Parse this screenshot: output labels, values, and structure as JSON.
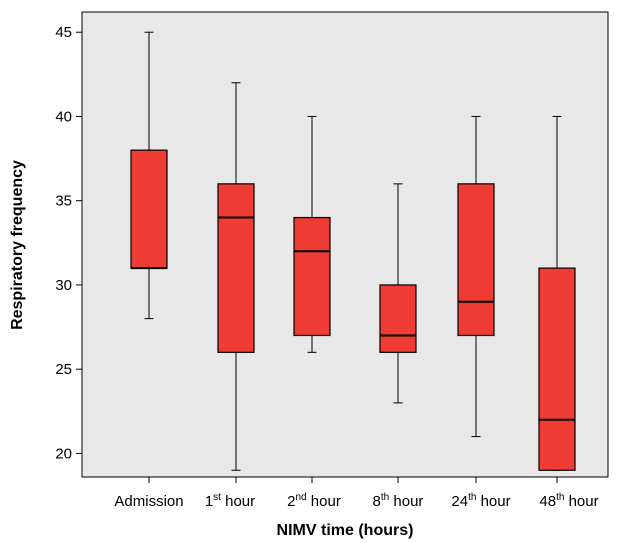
{
  "chart_data": {
    "type": "boxplot",
    "title": "",
    "xlabel": "NIMV time (hours)",
    "ylabel": "Respiratory frequency",
    "ylim": [
      18.6,
      46.2
    ],
    "yticks": [
      20,
      25,
      30,
      35,
      40,
      45
    ],
    "grid": false,
    "colors": {
      "plot_bg": "#e8e8e8",
      "box_fill": "#ee3b33",
      "line": "#000000"
    },
    "categories": [
      {
        "base": "Admission",
        "sup": "",
        "tail": ""
      },
      {
        "base": "1",
        "sup": "st",
        "tail": " hour"
      },
      {
        "base": "2",
        "sup": "nd",
        "tail": " hour"
      },
      {
        "base": "8",
        "sup": "th",
        "tail": " hour"
      },
      {
        "base": "24",
        "sup": "th",
        "tail": " hour"
      },
      {
        "base": "48",
        "sup": "th",
        "tail": " hour"
      }
    ],
    "boxes": [
      {
        "min": 28,
        "q1": 31,
        "median": 31,
        "q3": 38,
        "max": 45
      },
      {
        "min": 19,
        "q1": 26,
        "median": 34,
        "q3": 36,
        "max": 42
      },
      {
        "min": 26,
        "q1": 27,
        "median": 32,
        "q3": 34,
        "max": 40
      },
      {
        "min": 23,
        "q1": 26,
        "median": 27,
        "q3": 30,
        "max": 36
      },
      {
        "min": 21,
        "q1": 27,
        "median": 29,
        "q3": 36,
        "max": 40
      },
      {
        "min": 19,
        "q1": 19,
        "median": 22,
        "q3": 31,
        "max": 40
      }
    ]
  }
}
